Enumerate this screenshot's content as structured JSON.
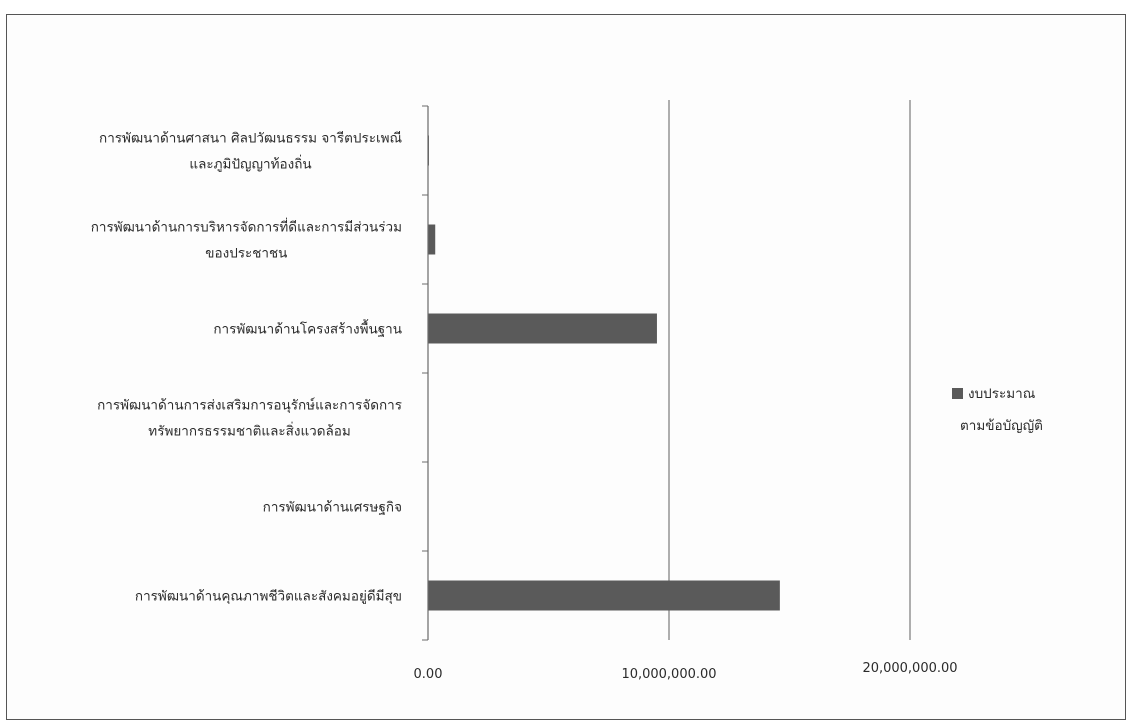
{
  "chart_data": {
    "type": "bar",
    "orientation": "horizontal",
    "categories": [
      [
        "การพัฒนาด้านศาสนา ศิลปวัฒนธรรม จารีตประเพณี",
        "และภูมิปัญญาท้องถิ่น"
      ],
      [
        "การพัฒนาด้านการบริหารจัดการที่ดีและการมีส่วนร่วม",
        "ของประชาชน"
      ],
      [
        "การพัฒนาด้านโครงสร้างพื้นฐาน"
      ],
      [
        "การพัฒนาด้านการส่งเสริมการอนุรักษ์และการจัดการ",
        "ทรัพยากรธรรมชาติและสิ่งแวดล้อม"
      ],
      [
        "การพัฒนาด้านเศรษฐกิจ"
      ],
      [
        "การพัฒนาด้านคุณภาพชีวิตและสังคมอยู่ดีมีสุข"
      ]
    ],
    "series": [
      {
        "name": [
          "งบประมาณ",
          "ตามข้อบัญญัติ"
        ],
        "values": [
          40000,
          300000,
          9500000,
          0,
          0,
          14600000
        ],
        "color": "#5a5a5a"
      }
    ],
    "x_ticks": [
      "0.00",
      "10,000,000.00",
      "20,000,000.00"
    ],
    "xlim": [
      0,
      20000000
    ],
    "grid": "vertical major gridlines",
    "legend_position": "right",
    "title": "",
    "xlabel": "",
    "ylabel": ""
  }
}
